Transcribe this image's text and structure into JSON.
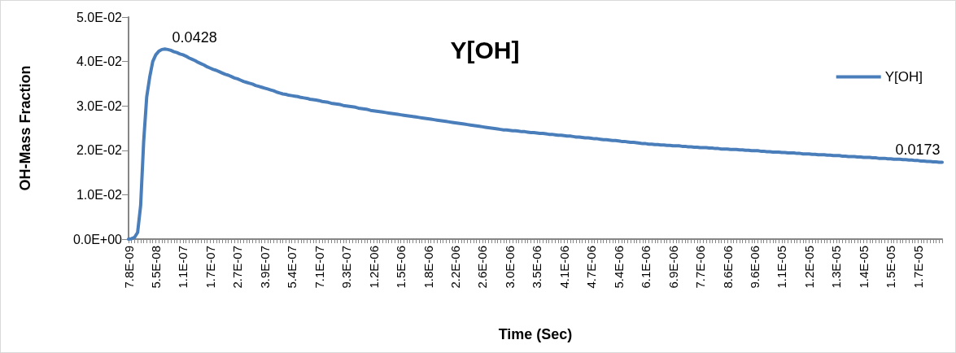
{
  "chart_data": {
    "type": "line",
    "title": "Y[OH]",
    "xlabel": "Time (Sec)",
    "ylabel": "OH-Mass Fraction",
    "categories": [
      "7.8E-09",
      null,
      null,
      null,
      null,
      null,
      null,
      null,
      null,
      "5.5E-08",
      null,
      null,
      null,
      null,
      null,
      null,
      null,
      null,
      "1.1E-07",
      null,
      null,
      null,
      null,
      null,
      null,
      null,
      null,
      "1.7E-07",
      null,
      null,
      null,
      null,
      null,
      null,
      null,
      null,
      "2.7E-07",
      null,
      null,
      null,
      null,
      null,
      null,
      null,
      null,
      "3.9E-07",
      null,
      null,
      null,
      null,
      null,
      null,
      null,
      null,
      "5.4E-07",
      null,
      null,
      null,
      null,
      null,
      null,
      null,
      null,
      "7.1E-07",
      null,
      null,
      null,
      null,
      null,
      null,
      null,
      null,
      "9.3E-07",
      null,
      null,
      null,
      null,
      null,
      null,
      null,
      null,
      "1.2E-06",
      null,
      null,
      null,
      null,
      null,
      null,
      null,
      null,
      "1.5E-06",
      null,
      null,
      null,
      null,
      null,
      null,
      null,
      null,
      "1.8E-06",
      null,
      null,
      null,
      null,
      null,
      null,
      null,
      null,
      "2.2E-06",
      null,
      null,
      null,
      null,
      null,
      null,
      null,
      null,
      "2.6E-06",
      null,
      null,
      null,
      null,
      null,
      null,
      null,
      null,
      "3.0E-06",
      null,
      null,
      null,
      null,
      null,
      null,
      null,
      null,
      "3.5E-06",
      null,
      null,
      null,
      null,
      null,
      null,
      null,
      null,
      "4.1E-06",
      null,
      null,
      null,
      null,
      null,
      null,
      null,
      null,
      "4.7E-06",
      null,
      null,
      null,
      null,
      null,
      null,
      null,
      null,
      "5.4E-06",
      null,
      null,
      null,
      null,
      null,
      null,
      null,
      null,
      "6.1E-06",
      null,
      null,
      null,
      null,
      null,
      null,
      null,
      null,
      "6.9E-06",
      null,
      null,
      null,
      null,
      null,
      null,
      null,
      null,
      "7.7E-06",
      null,
      null,
      null,
      null,
      null,
      null,
      null,
      null,
      "8.6E-06",
      null,
      null,
      null,
      null,
      null,
      null,
      null,
      null,
      "9.6E-06",
      null,
      null,
      null,
      null,
      null,
      null,
      null,
      null,
      "1.1E-05",
      null,
      null,
      null,
      null,
      null,
      null,
      null,
      null,
      "1.2E-05",
      null,
      null,
      null,
      null,
      null,
      null,
      null,
      null,
      "1.3E-05",
      null,
      null,
      null,
      null,
      null,
      null,
      null,
      null,
      "1.4E-05",
      null,
      null,
      null,
      null,
      null,
      null,
      null,
      null,
      "1.5E-05",
      null,
      null,
      null,
      null,
      null,
      null,
      null,
      null,
      "1.7E-05",
      null,
      null,
      null,
      null,
      null,
      null,
      null,
      null
    ],
    "series": [
      {
        "name": "Y[OH]",
        "color": "#4a7ebb",
        "values": [
          0,
          0.0001,
          0.0004,
          0.0015,
          0.0076,
          0.022,
          0.032,
          0.0365,
          0.04,
          0.0415,
          0.0423,
          0.0427,
          0.0428,
          0.0427,
          0.0425,
          0.0422,
          0.042,
          0.0417,
          0.0415,
          0.0412,
          0.0408,
          0.0405,
          0.0402,
          0.0398,
          0.0395,
          0.0392,
          0.0388,
          0.0385,
          0.0382,
          0.038,
          0.0377,
          0.0374,
          0.0371,
          0.0369,
          0.0366,
          0.0363,
          0.0361,
          0.0358,
          0.0355,
          0.0353,
          0.0351,
          0.0349,
          0.0346,
          0.0344,
          0.0342,
          0.034,
          0.0338,
          0.0336,
          0.0334,
          0.0331,
          0.0329,
          0.0327,
          0.0326,
          0.0324,
          0.0323,
          0.0322,
          0.0321,
          0.0319,
          0.0318,
          0.0317,
          0.0315,
          0.0314,
          0.0313,
          0.0312,
          0.031,
          0.0309,
          0.0308,
          0.0306,
          0.0305,
          0.0304,
          0.0303,
          0.0301,
          0.03,
          0.0299,
          0.0298,
          0.0297,
          0.0295,
          0.0294,
          0.0293,
          0.0292,
          0.029,
          0.0289,
          0.0288,
          0.0287,
          0.0286,
          0.0285,
          0.0284,
          0.0283,
          0.0282,
          0.0281,
          0.028,
          0.0279,
          0.0278,
          0.0277,
          0.0276,
          0.0275,
          0.0274,
          0.0273,
          0.0272,
          0.0271,
          0.027,
          0.0269,
          0.0268,
          0.0267,
          0.0266,
          0.0265,
          0.0264,
          0.0263,
          0.0262,
          0.0261,
          0.026,
          0.0259,
          0.0258,
          0.0257,
          0.0256,
          0.0255,
          0.0254,
          0.0253,
          0.0252,
          0.0251,
          0.025,
          0.0249,
          0.0248,
          0.0247,
          0.0246,
          0.0246,
          0.0245,
          0.0244,
          0.0244,
          0.0243,
          0.0242,
          0.0242,
          0.0241,
          0.024,
          0.024,
          0.0239,
          0.0238,
          0.0238,
          0.0237,
          0.0236,
          0.0236,
          0.0235,
          0.0234,
          0.0234,
          0.0233,
          0.0232,
          0.0232,
          0.0231,
          0.023,
          0.023,
          0.0229,
          0.0228,
          0.0228,
          0.0227,
          0.0226,
          0.0226,
          0.0225,
          0.0224,
          0.0224,
          0.0223,
          0.0222,
          0.0222,
          0.0221,
          0.022,
          0.022,
          0.0219,
          0.0218,
          0.0218,
          0.0217,
          0.0216,
          0.0215,
          0.0215,
          0.0214,
          0.0214,
          0.0213,
          0.0213,
          0.0212,
          0.0212,
          0.0211,
          0.0211,
          0.021,
          0.021,
          0.021,
          0.0209,
          0.0209,
          0.0208,
          0.0208,
          0.0207,
          0.0207,
          0.0206,
          0.0206,
          0.0206,
          0.0205,
          0.0205,
          0.0204,
          0.0204,
          0.0203,
          0.0203,
          0.0203,
          0.0202,
          0.0202,
          0.0202,
          0.0201,
          0.0201,
          0.02,
          0.02,
          0.0199,
          0.0199,
          0.0199,
          0.0198,
          0.0198,
          0.0197,
          0.0197,
          0.0196,
          0.0196,
          0.0196,
          0.0195,
          0.0195,
          0.0194,
          0.0194,
          0.0194,
          0.0193,
          0.0193,
          0.0192,
          0.0192,
          0.0192,
          0.0191,
          0.0191,
          0.019,
          0.019,
          0.019,
          0.0189,
          0.0189,
          0.0188,
          0.0188,
          0.0188,
          0.0187,
          0.0187,
          0.0186,
          0.0186,
          0.0186,
          0.0185,
          0.0185,
          0.0184,
          0.0184,
          0.0184,
          0.0183,
          0.0183,
          0.0182,
          0.0182,
          0.0182,
          0.0181,
          0.0181,
          0.018,
          0.018,
          0.018,
          0.0179,
          0.0179,
          0.0178,
          0.0178,
          0.0177,
          0.0177,
          0.0176,
          0.0176,
          0.0175,
          0.0175,
          0.0174,
          0.0174,
          0.0173,
          0.0173
        ],
        "value_labels": [
          null,
          null,
          null,
          null,
          null,
          null,
          null,
          null,
          null,
          null,
          null,
          null,
          "0.0428",
          null,
          null,
          null,
          null,
          null,
          null,
          null,
          null,
          null,
          null,
          null,
          null,
          null,
          null,
          null,
          null,
          null,
          null,
          null,
          null,
          null,
          null,
          null,
          null,
          null,
          null,
          null,
          null,
          null,
          null,
          null,
          null,
          null,
          null,
          null,
          null,
          null,
          null,
          null,
          null,
          null,
          null,
          null,
          null,
          null,
          null,
          null,
          null,
          null,
          null,
          null,
          null,
          null,
          null,
          null,
          null,
          null,
          null,
          null,
          null,
          null,
          null,
          null,
          null,
          null,
          null,
          null,
          null,
          null,
          null,
          null,
          null,
          null,
          null,
          null,
          null,
          null,
          null,
          null,
          null,
          null,
          null,
          null,
          null,
          null,
          null,
          null,
          null,
          null,
          null,
          null,
          null,
          null,
          null,
          null,
          null,
          null,
          null,
          null,
          null,
          null,
          null,
          null,
          null,
          null,
          null,
          null,
          null,
          null,
          null,
          null,
          null,
          null,
          null,
          null,
          null,
          null,
          null,
          null,
          null,
          null,
          null,
          null,
          null,
          null,
          null,
          null,
          null,
          null,
          null,
          null,
          null,
          null,
          null,
          null,
          null,
          null,
          null,
          null,
          null,
          null,
          null,
          null,
          null,
          null,
          null,
          null,
          null,
          null,
          null,
          null,
          null,
          null,
          null,
          null,
          null,
          null,
          null,
          null,
          null,
          null,
          null,
          null,
          null,
          null,
          null,
          null,
          null,
          null,
          null,
          null,
          null,
          null,
          null,
          null,
          null,
          null,
          null,
          null,
          null,
          null,
          null,
          null,
          null,
          null,
          null,
          null,
          null,
          null,
          null,
          null,
          null,
          null,
          null,
          null,
          null,
          null,
          null,
          null,
          null,
          null,
          null,
          null,
          null,
          null,
          null,
          null,
          null,
          null,
          null,
          null,
          null,
          null,
          null,
          null,
          null,
          null,
          null,
          null,
          null,
          null,
          null,
          null,
          null,
          null,
          null,
          null,
          null,
          null,
          null,
          null,
          null,
          null,
          null,
          null,
          null,
          null,
          null,
          null,
          null,
          null,
          null,
          null,
          null,
          null,
          null,
          null,
          null,
          null,
          null,
          null,
          null,
          null,
          null,
          null,
          null,
          "0.0173"
        ]
      }
    ],
    "ylim": [
      0,
      0.05
    ],
    "yticks": [
      {
        "value": 0,
        "label": "0.0E+00"
      },
      {
        "value": 0.01,
        "label": "1.0E-02"
      },
      {
        "value": 0.02,
        "label": "2.0E-02"
      },
      {
        "value": 0.03,
        "label": "3.0E-02"
      },
      {
        "value": 0.04,
        "label": "4.0E-02"
      },
      {
        "value": 0.05,
        "label": "5.0E-02"
      }
    ],
    "grid": false,
    "legend": "right",
    "marker": "none",
    "line_style": "solid"
  }
}
